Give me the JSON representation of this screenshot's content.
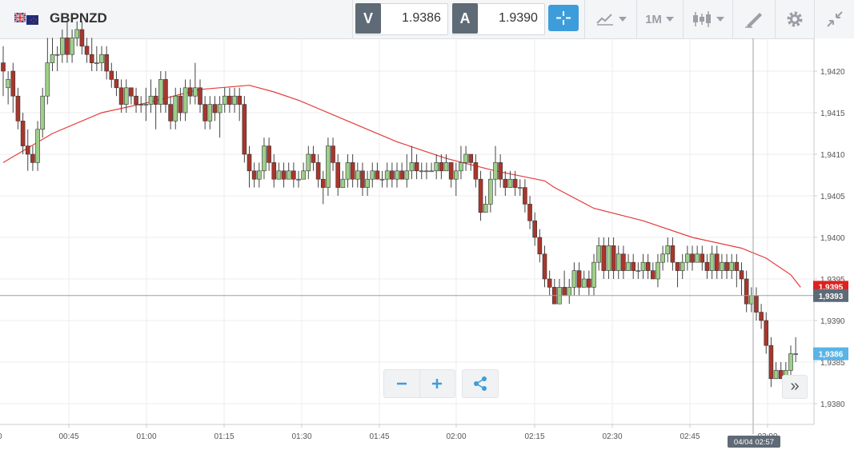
{
  "header": {
    "symbol": "GBPNZD",
    "bid_label": "V",
    "bid_value": "1.9386",
    "ask_label": "A",
    "ask_value": "1.9390",
    "timeframe": "1M",
    "icons": [
      "flag-icon",
      "crosshair-icon",
      "chart-type-icon",
      "candlestick-icon",
      "draw-icon",
      "gear-icon",
      "collapse-icon"
    ]
  },
  "colors": {
    "bull": "#9ecf8a",
    "bear": "#a8362c",
    "ma_line": "#e33b3b",
    "accent": "#3d9ddb",
    "cursor_label": "#5e6a76",
    "price_marker": "#e02020",
    "last_price": "#5ab4e6"
  },
  "chart_data": {
    "type": "candlestick",
    "title": "",
    "xlabel": "",
    "ylabel": "",
    "ylim": [
      1.9375,
      1.9424
    ],
    "y_ticks": [
      "1,9380",
      "1,9385",
      "1,9390",
      "1,9395",
      "1,9400",
      "1,9405",
      "1,9410",
      "1,9415",
      "1,9420"
    ],
    "x_ticks": [
      "00:45",
      "01:00",
      "01:15",
      "01:30",
      "01:45",
      "02:00",
      "02:15",
      "02:30",
      "02:45",
      "03:00"
    ],
    "x_edge_label": "0",
    "grid": true,
    "cursor_price_label": "1,9393",
    "cursor_time_label": "04/04 02:57",
    "last_price_label": "1,9386",
    "ma_marker_label": "1,9395",
    "ma_series": [
      [
        0,
        1.9409
      ],
      [
        10,
        1.94125
      ],
      [
        20,
        1.9415
      ],
      [
        30,
        1.94163
      ],
      [
        40,
        1.94178
      ],
      [
        50,
        1.94183
      ],
      [
        55,
        1.94175
      ],
      [
        60,
        1.94165
      ],
      [
        70,
        1.9414
      ],
      [
        80,
        1.94115
      ],
      [
        90,
        1.94095
      ],
      [
        100,
        1.9408
      ],
      [
        110,
        1.94068
      ],
      [
        112,
        1.9406
      ],
      [
        120,
        1.94035
      ],
      [
        130,
        1.9402
      ],
      [
        140,
        1.94
      ],
      [
        150,
        1.93987
      ],
      [
        155,
        1.93975
      ],
      [
        160,
        1.93955
      ],
      [
        162,
        1.9394
      ]
    ],
    "candles": [
      [
        0,
        1.9421,
        1.942,
        1.9423,
        1.9417
      ],
      [
        1,
        1.9418,
        1.9419,
        1.942,
        1.9416
      ],
      [
        2,
        1.942,
        1.9417,
        1.9421,
        1.9415
      ],
      [
        3,
        1.9417,
        1.9414,
        1.9418,
        1.9413
      ],
      [
        4,
        1.9414,
        1.9411,
        1.9415,
        1.941
      ],
      [
        5,
        1.9411,
        1.941,
        1.9413,
        1.9408
      ],
      [
        6,
        1.941,
        1.9409,
        1.9411,
        1.9408
      ],
      [
        7,
        1.9409,
        1.9413,
        1.9414,
        1.9408
      ],
      [
        8,
        1.9413,
        1.9417,
        1.9418,
        1.9412
      ],
      [
        9,
        1.9417,
        1.9421,
        1.9424,
        1.9416
      ],
      [
        10,
        1.9421,
        1.9422,
        1.9424,
        1.942
      ],
      [
        11,
        1.9422,
        1.9422,
        1.9423,
        1.942
      ],
      [
        12,
        1.9422,
        1.9424,
        1.9425,
        1.9421
      ],
      [
        13,
        1.9424,
        1.9422,
        1.9426,
        1.9421
      ],
      [
        14,
        1.9422,
        1.9424,
        1.9425,
        1.9421
      ],
      [
        15,
        1.9424,
        1.9425,
        1.9426,
        1.9423
      ],
      [
        16,
        1.9425,
        1.9423,
        1.9426,
        1.9422
      ],
      [
        17,
        1.9423,
        1.9422,
        1.9424,
        1.9421
      ],
      [
        18,
        1.9422,
        1.9421,
        1.9424,
        1.942
      ],
      [
        19,
        1.9421,
        1.9421,
        1.9423,
        1.942
      ],
      [
        20,
        1.9421,
        1.9422,
        1.9423,
        1.942
      ],
      [
        21,
        1.9422,
        1.942,
        1.9423,
        1.9419
      ],
      [
        22,
        1.942,
        1.9419,
        1.9421,
        1.9418
      ],
      [
        23,
        1.9419,
        1.9418,
        1.942,
        1.9417
      ],
      [
        24,
        1.9418,
        1.9416,
        1.9419,
        1.9415
      ],
      [
        25,
        1.9416,
        1.9418,
        1.9419,
        1.9415
      ],
      [
        26,
        1.9418,
        1.9417,
        1.9418,
        1.9416
      ],
      [
        27,
        1.9417,
        1.9416,
        1.9418,
        1.9415
      ],
      [
        28,
        1.9416,
        1.9416,
        1.9417,
        1.9415
      ],
      [
        29,
        1.9416,
        1.9416,
        1.9418,
        1.9414
      ],
      [
        30,
        1.9416,
        1.9417,
        1.9419,
        1.9415
      ],
      [
        31,
        1.9417,
        1.9416,
        1.9418,
        1.9413
      ],
      [
        32,
        1.9416,
        1.9419,
        1.942,
        1.9415
      ],
      [
        33,
        1.9419,
        1.9416,
        1.942,
        1.9415
      ],
      [
        34,
        1.9416,
        1.9414,
        1.9417,
        1.9413
      ],
      [
        35,
        1.9414,
        1.9417,
        1.9418,
        1.9413
      ],
      [
        36,
        1.9417,
        1.9415,
        1.9418,
        1.9414
      ],
      [
        37,
        1.9415,
        1.9418,
        1.9419,
        1.9414
      ],
      [
        38,
        1.9418,
        1.9417,
        1.9419,
        1.9416
      ],
      [
        39,
        1.9417,
        1.9418,
        1.9421,
        1.9416
      ],
      [
        40,
        1.9418,
        1.9416,
        1.9419,
        1.9415
      ],
      [
        41,
        1.9416,
        1.9414,
        1.9417,
        1.9413
      ],
      [
        42,
        1.9414,
        1.9416,
        1.9417,
        1.9413
      ],
      [
        43,
        1.9416,
        1.9415,
        1.9417,
        1.9414
      ],
      [
        44,
        1.9415,
        1.9416,
        1.9417,
        1.9412
      ],
      [
        45,
        1.9416,
        1.9417,
        1.9418,
        1.9415
      ],
      [
        46,
        1.9417,
        1.9416,
        1.9418,
        1.9415
      ],
      [
        47,
        1.9416,
        1.9417,
        1.9418,
        1.9415
      ],
      [
        48,
        1.9417,
        1.9416,
        1.9418,
        1.9414
      ],
      [
        49,
        1.9416,
        1.941,
        1.9417,
        1.9409
      ],
      [
        50,
        1.941,
        1.9408,
        1.9411,
        1.9406
      ],
      [
        51,
        1.9408,
        1.9407,
        1.9409,
        1.9406
      ],
      [
        52,
        1.9407,
        1.9408,
        1.9409,
        1.9406
      ],
      [
        53,
        1.9408,
        1.9411,
        1.9412,
        1.9407
      ],
      [
        54,
        1.9411,
        1.9409,
        1.9412,
        1.9408
      ],
      [
        55,
        1.9409,
        1.9407,
        1.941,
        1.9406
      ],
      [
        56,
        1.9407,
        1.9408,
        1.9409,
        1.9407
      ],
      [
        57,
        1.9408,
        1.9407,
        1.9409,
        1.9406
      ],
      [
        58,
        1.9407,
        1.9408,
        1.9409,
        1.9407
      ],
      [
        59,
        1.9408,
        1.9407,
        1.9409,
        1.9406
      ],
      [
        60,
        1.9407,
        1.9407,
        1.9408,
        1.9406
      ],
      [
        61,
        1.9407,
        1.9408,
        1.9409,
        1.9407
      ],
      [
        62,
        1.9408,
        1.941,
        1.9411,
        1.9407
      ],
      [
        63,
        1.941,
        1.9409,
        1.9411,
        1.9408
      ],
      [
        64,
        1.9409,
        1.9407,
        1.941,
        1.9406
      ],
      [
        65,
        1.9407,
        1.9406,
        1.9408,
        1.9404
      ],
      [
        66,
        1.9406,
        1.9411,
        1.9412,
        1.9405
      ],
      [
        67,
        1.9411,
        1.9409,
        1.9412,
        1.9408
      ],
      [
        68,
        1.9409,
        1.9406,
        1.941,
        1.9405
      ],
      [
        69,
        1.9406,
        1.9407,
        1.9408,
        1.9406
      ],
      [
        70,
        1.9407,
        1.9409,
        1.941,
        1.9406
      ],
      [
        71,
        1.9409,
        1.9407,
        1.941,
        1.9406
      ],
      [
        72,
        1.9407,
        1.9408,
        1.9409,
        1.9406
      ],
      [
        73,
        1.9408,
        1.9406,
        1.9409,
        1.9405
      ],
      [
        74,
        1.9406,
        1.9407,
        1.9408,
        1.9405
      ],
      [
        75,
        1.9407,
        1.9408,
        1.9409,
        1.9406
      ],
      [
        76,
        1.9408,
        1.9407,
        1.9409,
        1.9407
      ],
      [
        77,
        1.9407,
        1.9407,
        1.9408,
        1.9406
      ],
      [
        78,
        1.9407,
        1.9408,
        1.9409,
        1.9406
      ],
      [
        79,
        1.9408,
        1.9407,
        1.9409,
        1.9406
      ],
      [
        80,
        1.9407,
        1.9408,
        1.9409,
        1.9406
      ],
      [
        81,
        1.9408,
        1.9407,
        1.9409,
        1.9407
      ],
      [
        82,
        1.9407,
        1.9408,
        1.941,
        1.9406
      ],
      [
        83,
        1.9408,
        1.9409,
        1.9411,
        1.9407
      ],
      [
        84,
        1.9409,
        1.9408,
        1.941,
        1.9407
      ],
      [
        85,
        1.9408,
        1.9408,
        1.9409,
        1.9407
      ],
      [
        86,
        1.9408,
        1.9408,
        1.9409,
        1.9407
      ],
      [
        87,
        1.9408,
        1.9408,
        1.9409,
        1.9408
      ],
      [
        88,
        1.9408,
        1.9409,
        1.941,
        1.9407
      ],
      [
        89,
        1.9409,
        1.9408,
        1.941,
        1.9407
      ],
      [
        90,
        1.9408,
        1.9409,
        1.941,
        1.9408
      ],
      [
        91,
        1.9409,
        1.9407,
        1.9409,
        1.9406
      ],
      [
        92,
        1.9407,
        1.9408,
        1.9409,
        1.9405
      ],
      [
        93,
        1.9408,
        1.9409,
        1.9411,
        1.9407
      ],
      [
        94,
        1.9409,
        1.941,
        1.9411,
        1.9408
      ],
      [
        95,
        1.941,
        1.9409,
        1.941,
        1.9408
      ],
      [
        96,
        1.9409,
        1.9407,
        1.941,
        1.9406
      ],
      [
        97,
        1.9407,
        1.9403,
        1.9408,
        1.9402
      ],
      [
        98,
        1.9403,
        1.9404,
        1.9405,
        1.9403
      ],
      [
        99,
        1.9404,
        1.9407,
        1.9408,
        1.9403
      ],
      [
        100,
        1.9407,
        1.9409,
        1.9411,
        1.9405
      ],
      [
        101,
        1.9409,
        1.9407,
        1.941,
        1.9406
      ],
      [
        102,
        1.9407,
        1.9406,
        1.9408,
        1.9405
      ],
      [
        103,
        1.9406,
        1.9407,
        1.9408,
        1.9406
      ],
      [
        104,
        1.9407,
        1.9406,
        1.9408,
        1.9405
      ],
      [
        105,
        1.9406,
        1.9406,
        1.9407,
        1.9405
      ],
      [
        106,
        1.9406,
        1.9404,
        1.9407,
        1.9403
      ],
      [
        107,
        1.9404,
        1.9402,
        1.9405,
        1.9401
      ],
      [
        108,
        1.9402,
        1.94,
        1.9403,
        1.9399
      ],
      [
        109,
        1.94,
        1.9398,
        1.9401,
        1.9397
      ],
      [
        110,
        1.9398,
        1.9395,
        1.9399,
        1.9394
      ],
      [
        111,
        1.9395,
        1.9394,
        1.9396,
        1.9393
      ],
      [
        112,
        1.9394,
        1.9392,
        1.9395,
        1.9392
      ],
      [
        113,
        1.9392,
        1.9394,
        1.9395,
        1.9392
      ],
      [
        114,
        1.9394,
        1.9393,
        1.9396,
        1.9393
      ],
      [
        115,
        1.9393,
        1.9394,
        1.9395,
        1.9392
      ],
      [
        116,
        1.9394,
        1.9396,
        1.9397,
        1.9393
      ],
      [
        117,
        1.9396,
        1.9394,
        1.9397,
        1.9393
      ],
      [
        118,
        1.9394,
        1.9395,
        1.9396,
        1.9394
      ],
      [
        119,
        1.9395,
        1.9394,
        1.9396,
        1.9393
      ],
      [
        120,
        1.9394,
        1.9397,
        1.9398,
        1.9393
      ],
      [
        121,
        1.9397,
        1.9399,
        1.94,
        1.9396
      ],
      [
        122,
        1.9399,
        1.9396,
        1.94,
        1.9395
      ],
      [
        123,
        1.9396,
        1.9399,
        1.94,
        1.9395
      ],
      [
        124,
        1.9399,
        1.9396,
        1.94,
        1.9395
      ],
      [
        125,
        1.9396,
        1.9398,
        1.9399,
        1.9395
      ],
      [
        126,
        1.9398,
        1.9396,
        1.9399,
        1.9395
      ],
      [
        127,
        1.9396,
        1.9397,
        1.9398,
        1.9396
      ],
      [
        128,
        1.9397,
        1.9396,
        1.9398,
        1.9395
      ],
      [
        129,
        1.9396,
        1.9396,
        1.9397,
        1.9395
      ],
      [
        130,
        1.9396,
        1.9397,
        1.9398,
        1.9395
      ],
      [
        131,
        1.9397,
        1.9396,
        1.9398,
        1.9395
      ],
      [
        132,
        1.9396,
        1.9395,
        1.9397,
        1.9395
      ],
      [
        133,
        1.9395,
        1.9397,
        1.9398,
        1.9394
      ],
      [
        134,
        1.9397,
        1.9398,
        1.9399,
        1.9396
      ],
      [
        135,
        1.9398,
        1.9399,
        1.94,
        1.9397
      ],
      [
        136,
        1.9399,
        1.9397,
        1.94,
        1.9396
      ],
      [
        137,
        1.9397,
        1.9396,
        1.9397,
        1.9394
      ],
      [
        138,
        1.9396,
        1.9397,
        1.9398,
        1.9395
      ],
      [
        139,
        1.9397,
        1.9398,
        1.9399,
        1.9396
      ],
      [
        140,
        1.9398,
        1.9397,
        1.9399,
        1.9396
      ],
      [
        141,
        1.9397,
        1.9398,
        1.9399,
        1.9397
      ],
      [
        142,
        1.9398,
        1.9397,
        1.9399,
        1.9396
      ],
      [
        143,
        1.9397,
        1.9396,
        1.9398,
        1.9395
      ],
      [
        144,
        1.9396,
        1.9398,
        1.9399,
        1.9395
      ],
      [
        145,
        1.9398,
        1.9396,
        1.9399,
        1.9395
      ],
      [
        146,
        1.9396,
        1.9397,
        1.9398,
        1.9395
      ],
      [
        147,
        1.9397,
        1.9396,
        1.9398,
        1.9395
      ],
      [
        148,
        1.9396,
        1.9397,
        1.9398,
        1.9395
      ],
      [
        149,
        1.9397,
        1.9396,
        1.9398,
        1.9394
      ],
      [
        150,
        1.9396,
        1.9395,
        1.9397,
        1.9393
      ],
      [
        151,
        1.9395,
        1.9392,
        1.9396,
        1.9391
      ],
      [
        152,
        1.9392,
        1.9393,
        1.9394,
        1.9391
      ],
      [
        153,
        1.9393,
        1.9391,
        1.9394,
        1.939
      ],
      [
        154,
        1.9391,
        1.939,
        1.9392,
        1.9389
      ],
      [
        155,
        1.939,
        1.9387,
        1.9391,
        1.9386
      ],
      [
        156,
        1.9387,
        1.9383,
        1.9388,
        1.9382
      ],
      [
        157,
        1.9383,
        1.9384,
        1.9385,
        1.9383
      ],
      [
        158,
        1.9384,
        1.9383,
        1.9385,
        1.9383
      ],
      [
        159,
        1.9383,
        1.9384,
        1.9385,
        1.9383
      ],
      [
        160,
        1.9384,
        1.9386,
        1.9387,
        1.9383
      ],
      [
        161,
        1.9386,
        1.9386,
        1.9388,
        1.9385
      ]
    ]
  }
}
